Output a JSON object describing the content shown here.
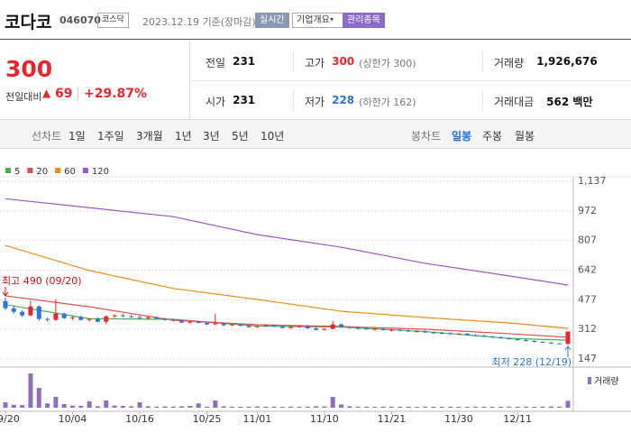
{
  "header": {
    "name": "코다코",
    "code": "046070",
    "market": "코스닥",
    "date": "2023.12.19 기준(장마감)",
    "buttons": [
      "실시간",
      "기업개요",
      "관리종목"
    ]
  },
  "quote": {
    "price": "300",
    "change_label": "전일대비",
    "change": "69",
    "change_pct": "+29.87%",
    "rows": [
      [
        {
          "label": "전일",
          "value": "231"
        },
        {
          "label": "고가",
          "value": "300",
          "note": "(상한가 300)"
        },
        {
          "label": "거래량",
          "value": "1,926,676"
        }
      ],
      [
        {
          "label": "시가",
          "value": "231"
        },
        {
          "label": "저가",
          "value": "228",
          "note": "(하한가 162)"
        },
        {
          "label": "거래대금",
          "value": "562 백만"
        }
      ]
    ]
  },
  "tabs": {
    "line": "선차트",
    "line_periods": [
      "1일",
      "1주일",
      "3개월",
      "1년",
      "3년",
      "5년",
      "10년"
    ],
    "candle": "봉차트",
    "candle_periods": [
      "일봉",
      "주봉",
      "월봉"
    ]
  },
  "chart_data": {
    "type": "candlestick",
    "categories": [
      "09/20",
      null,
      null,
      null,
      null,
      null,
      null,
      null,
      "10/04",
      null,
      null,
      null,
      null,
      null,
      null,
      null,
      "10/16",
      null,
      null,
      null,
      null,
      null,
      null,
      null,
      "10/25",
      null,
      null,
      null,
      null,
      null,
      "11/01",
      null,
      null,
      null,
      null,
      null,
      null,
      null,
      "11/10",
      null,
      null,
      null,
      null,
      null,
      null,
      null,
      "11/21",
      null,
      null,
      null,
      null,
      null,
      null,
      null,
      "11/30",
      null,
      null,
      null,
      null,
      null,
      null,
      "12/11",
      null,
      null,
      null,
      null,
      null,
      null
    ],
    "open": [
      470,
      430,
      410,
      390,
      440,
      370,
      365,
      400,
      375,
      380,
      365,
      370,
      355,
      385,
      390,
      385,
      380,
      375,
      380,
      372,
      365,
      360,
      350,
      355,
      348,
      340,
      345,
      335,
      340,
      332,
      325,
      330,
      335,
      328,
      320,
      325,
      330,
      318,
      310,
      315,
      340,
      325,
      320,
      318,
      312,
      315,
      308,
      310,
      305,
      300,
      302,
      295,
      292,
      290,
      285,
      288,
      280,
      278,
      272,
      268,
      262,
      258,
      252,
      248,
      242,
      238,
      234,
      231
    ],
    "high": [
      490,
      445,
      420,
      470,
      445,
      380,
      480,
      405,
      385,
      390,
      375,
      380,
      390,
      395,
      400,
      395,
      390,
      385,
      385,
      378,
      370,
      365,
      360,
      360,
      355,
      400,
      350,
      345,
      345,
      338,
      335,
      340,
      340,
      332,
      330,
      335,
      335,
      325,
      320,
      360,
      345,
      330,
      328,
      325,
      320,
      320,
      315,
      315,
      312,
      308,
      308,
      300,
      298,
      296,
      292,
      292,
      286,
      283,
      278,
      272,
      268,
      262,
      258,
      252,
      246,
      242,
      236,
      300
    ],
    "low": [
      420,
      400,
      380,
      385,
      360,
      355,
      360,
      370,
      365,
      360,
      355,
      350,
      340,
      375,
      380,
      375,
      370,
      365,
      370,
      360,
      355,
      345,
      340,
      345,
      335,
      335,
      330,
      330,
      330,
      320,
      320,
      325,
      325,
      318,
      315,
      320,
      315,
      305,
      305,
      312,
      320,
      315,
      312,
      310,
      305,
      305,
      300,
      300,
      298,
      295,
      292,
      288,
      285,
      282,
      280,
      278,
      275,
      270,
      265,
      260,
      255,
      250,
      245,
      240,
      235,
      232,
      229,
      228
    ],
    "close": [
      430,
      410,
      390,
      440,
      370,
      365,
      400,
      375,
      380,
      365,
      370,
      355,
      385,
      390,
      385,
      380,
      375,
      380,
      372,
      365,
      360,
      350,
      355,
      348,
      340,
      345,
      335,
      340,
      332,
      325,
      330,
      335,
      328,
      320,
      325,
      330,
      318,
      310,
      315,
      340,
      325,
      320,
      318,
      312,
      315,
      308,
      310,
      305,
      300,
      302,
      295,
      292,
      290,
      285,
      288,
      280,
      278,
      272,
      268,
      262,
      258,
      252,
      248,
      242,
      238,
      234,
      231,
      300
    ],
    "volume": [
      1500000,
      800000,
      700000,
      9500000,
      5500000,
      1200000,
      3000000,
      1000000,
      600000,
      500000,
      1800000,
      400000,
      2000000,
      600000,
      500000,
      400000,
      1500000,
      400000,
      300000,
      350000,
      300000,
      400000,
      500000,
      1200000,
      300000,
      2000000,
      400000,
      300000,
      250000,
      300000,
      350000,
      300000,
      300000,
      250000,
      300000,
      280000,
      300000,
      400000,
      350000,
      3000000,
      900000,
      400000,
      300000,
      300000,
      250000,
      300000,
      280000,
      300000,
      250000,
      250000,
      300000,
      280000,
      260000,
      300000,
      250000,
      260000,
      280000,
      300000,
      250000,
      260000,
      300000,
      280000,
      300000,
      260000,
      300000,
      350000,
      300000,
      1926676
    ],
    "volume_label": "거래량",
    "volume_color": "#8f6fbd",
    "up_color": "#e8262d",
    "down_color": "#2f74d8",
    "ylim": [
      147,
      1137
    ],
    "yticks": [
      147,
      312,
      477,
      642,
      807,
      972,
      {
        "value": 1137,
        "label": "1,137"
      }
    ],
    "grid": true,
    "ma_series": [
      {
        "name": "5",
        "color": "#4cae4c",
        "x": [
          0,
          10,
          20,
          30,
          40,
          50,
          60,
          67
        ],
        "values": [
          450,
          372,
          368,
          330,
          325,
          300,
          262,
          252
        ]
      },
      {
        "name": "20",
        "color": "#e94b4b",
        "x": [
          0,
          10,
          20,
          30,
          40,
          50,
          60,
          67
        ],
        "values": [
          499,
          438,
          363,
          338,
          328,
          313,
          288,
          268
        ]
      },
      {
        "name": "60",
        "color": "#f08c1c",
        "x": [
          0,
          10,
          20,
          30,
          40,
          50,
          60,
          67
        ],
        "values": [
          780,
          640,
          540,
          479,
          413,
          378,
          348,
          318
        ]
      },
      {
        "name": "120",
        "color": "#9b59d0",
        "x": [
          0,
          10,
          20,
          30,
          40,
          50,
          60,
          67
        ],
        "values": [
          1040,
          990,
          940,
          840,
          770,
          680,
          610,
          559
        ]
      }
    ],
    "high_label": "최고 490 (09/20)",
    "low_label": "최저 228 (12/19)"
  }
}
